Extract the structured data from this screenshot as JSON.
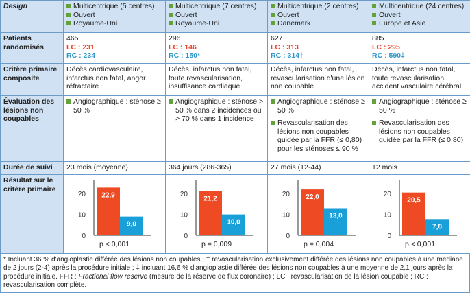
{
  "row_labels": {
    "design": "Design",
    "patients": "Patients randomisés",
    "critere": "Critère primaire composite",
    "evaluation": "Évaluation des lésions non coupables",
    "duree": "Durée de suivi",
    "resultat": "Résultat sur le critère primaire"
  },
  "columns": [
    {
      "design": [
        "Multicentrique (5 centres)",
        "Ouvert",
        "Royaume-Uni"
      ],
      "patients_total": "465",
      "lc": "LC : 231",
      "rc": "RC : 234",
      "critere": "Décès cardiovasculaire, infarctus non fatal, angor réfractaire",
      "evaluation": [
        "Angiographique : sténose ≥ 50 %"
      ],
      "duree": "23 mois (moyenne)",
      "p": "p < 0,001"
    },
    {
      "design": [
        "Multicentrique (7 centres)",
        "Ouvert",
        "Royaume-Uni"
      ],
      "patients_total": "296",
      "lc": "LC : 146",
      "rc": "RC : 150*",
      "critere": "Décès, infarctus non fatal, toute revascularisation, insuffisance cardiaque",
      "evaluation": [
        "Angiographique : sténose > 50 % dans 2 incidences ou > 70 % dans 1 incidence"
      ],
      "duree": "364 jours (286-365)",
      "p": "p = 0,009"
    },
    {
      "design": [
        "Multicentrique (2 centres)",
        "Ouvert",
        "Danemark"
      ],
      "patients_total": "627",
      "lc": "LC : 313",
      "rc": "RC : 314†",
      "critere": "Décès, infarctus non fatal, revascularisation d'une lésion non coupable",
      "evaluation": [
        "Angiographique : sténose ≥ 50 %",
        "Revascularisation des lésions non coupables guidée par la FFR (≤ 0,80) pour les sténoses ≤ 90 %"
      ],
      "duree": "27 mois (12-44)",
      "p": "p = 0,004"
    },
    {
      "design": [
        "Multicentrique (24 centres)",
        "Ouvert",
        "Europe et Asie"
      ],
      "patients_total": "885",
      "lc": "LC : 295",
      "rc": "RC : 590‡",
      "critere": "Décès, infarctus non fatal, toute revascularisation, accident vasculaire cérébral",
      "evaluation": [
        "Angiographique : sténose ≥ 50 %",
        "Revascularisation des lésions non coupables guidée par la FFR (≤ 0,80)"
      ],
      "duree": "12 mois",
      "p": "p < 0,001"
    }
  ],
  "chart_data": [
    {
      "type": "bar",
      "categories": [
        "LC",
        "RC"
      ],
      "values": [
        22.9,
        9.0
      ],
      "labels": [
        "22,9",
        "9,0"
      ],
      "yticks": [
        "0",
        "10",
        "20"
      ],
      "ylim": [
        0,
        25
      ],
      "colors": [
        "#ee4a23",
        "#1aa0d8"
      ]
    },
    {
      "type": "bar",
      "categories": [
        "LC",
        "RC"
      ],
      "values": [
        21.2,
        10.0
      ],
      "labels": [
        "21,2",
        "10,0"
      ],
      "yticks": [
        "0",
        "10",
        "20"
      ],
      "ylim": [
        0,
        25
      ],
      "colors": [
        "#ee4a23",
        "#1aa0d8"
      ]
    },
    {
      "type": "bar",
      "categories": [
        "LC",
        "RC"
      ],
      "values": [
        22.0,
        13.0
      ],
      "labels": [
        "22,0",
        "13,0"
      ],
      "yticks": [
        "0",
        "10",
        "20"
      ],
      "ylim": [
        0,
        25
      ],
      "colors": [
        "#ee4a23",
        "#1aa0d8"
      ]
    },
    {
      "type": "bar",
      "categories": [
        "LC",
        "RC"
      ],
      "values": [
        20.5,
        7.8
      ],
      "labels": [
        "20,5",
        "7,8"
      ],
      "yticks": [
        "0",
        "10",
        "20"
      ],
      "ylim": [
        0,
        25
      ],
      "colors": [
        "#ee4a23",
        "#1aa0d8"
      ]
    }
  ],
  "footnote": {
    "part1": "* Incluant 36 % d'angioplastie différée des lésions non coupables ; † revascularisation exclusivement différée des lésions non coupables à une médiane de 2 jours (2-4) après la procédure initiale ; ‡ incluant 16,6 % d'angioplastie différée des lésions non coupables à une moyenne de 2,1 jours après la procédure initiale. FFR : ",
    "ffr_term": "Fractional flow reserve",
    "part2": " (mesure de la réserve de flux coronaire) ; LC : revascularisation de la lésion coupable ; RC : revascularisation complète."
  }
}
